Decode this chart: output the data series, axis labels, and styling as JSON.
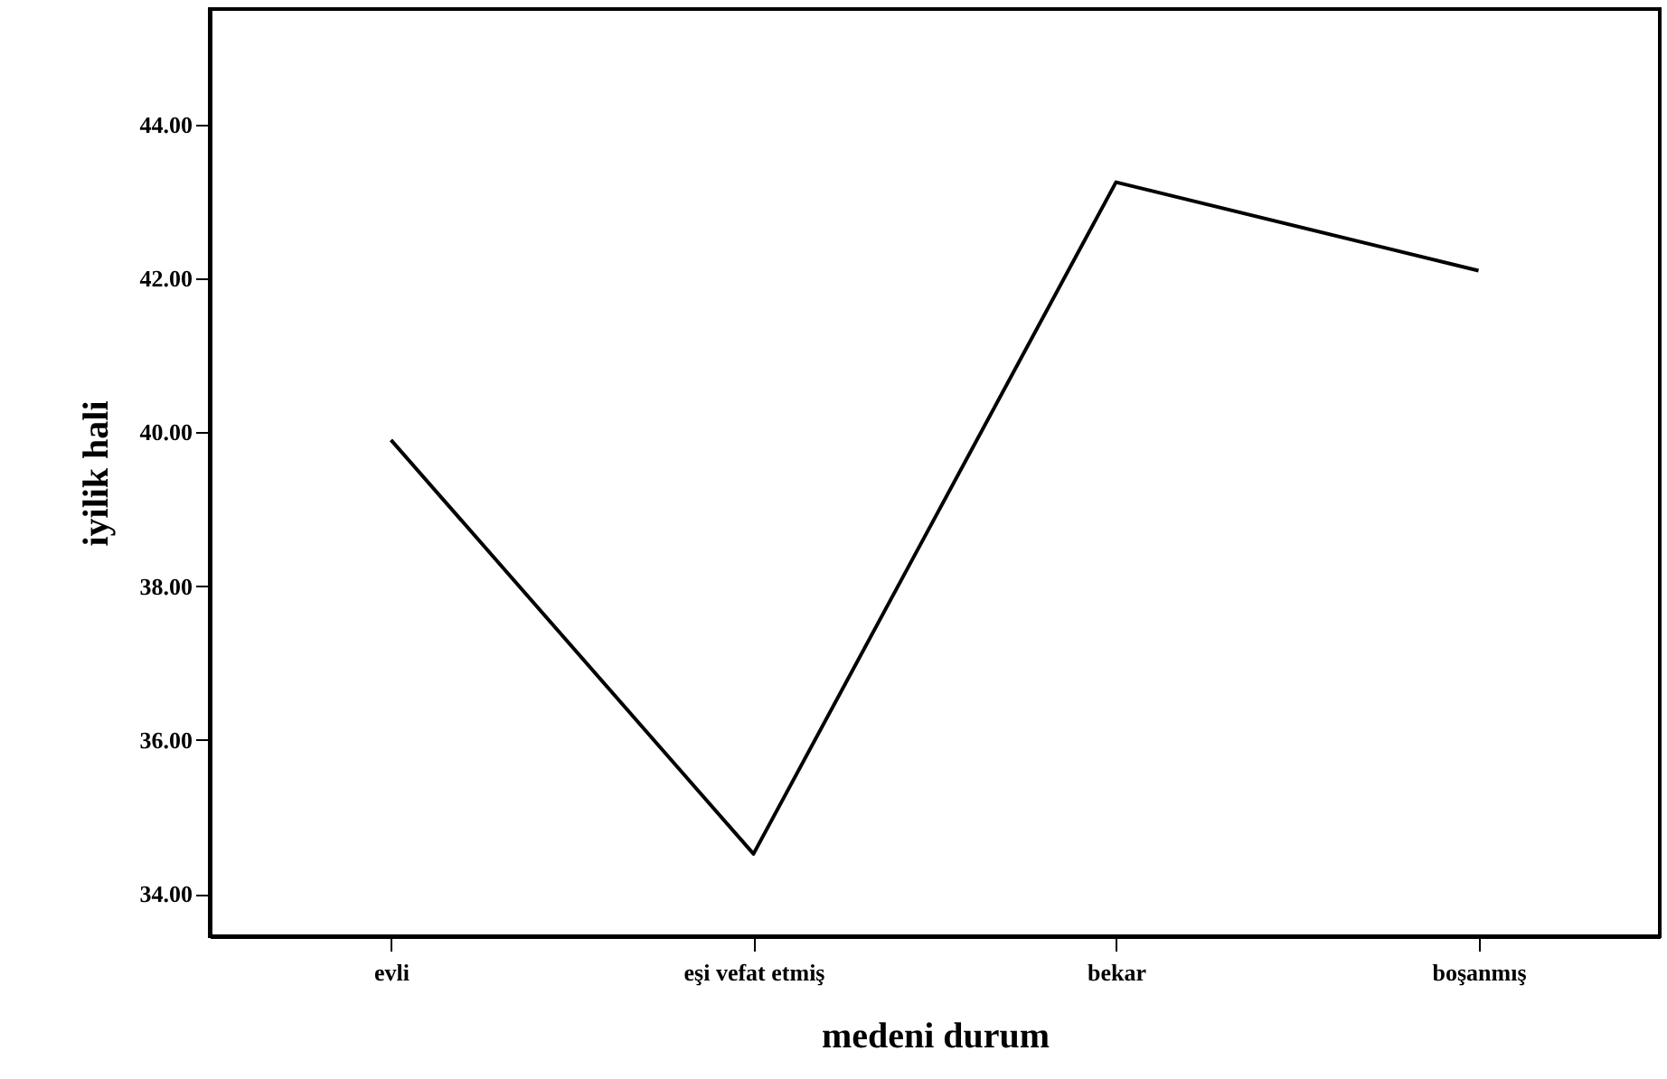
{
  "chart_data": {
    "type": "line",
    "xlabel": "medeni durum",
    "ylabel": "iyilik hali",
    "categories": [
      "evli",
      "eşi vefat etmiş",
      "bekar",
      "boşanmış"
    ],
    "series": [
      {
        "color": "#000000",
        "values": [
          39.9,
          34.52,
          43.25,
          42.1
        ]
      }
    ],
    "ylim": [
      33.45,
      45.5
    ],
    "yticks": [
      {
        "value": 34,
        "label": "34.00"
      },
      {
        "value": 36,
        "label": "36.00"
      },
      {
        "value": 38,
        "label": "38.00"
      },
      {
        "value": 40,
        "label": "40.00"
      },
      {
        "value": 42,
        "label": "42.00"
      },
      {
        "value": 44,
        "label": "44.00"
      }
    ],
    "grid": false,
    "marker": "none",
    "line_style": "solid"
  }
}
